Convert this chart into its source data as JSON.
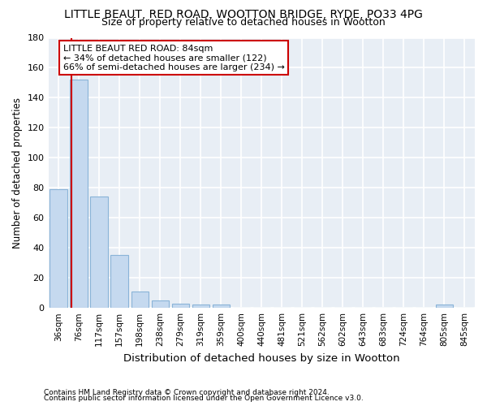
{
  "title": "LITTLE BEAUT, RED ROAD, WOOTTON BRIDGE, RYDE, PO33 4PG",
  "subtitle": "Size of property relative to detached houses in Wootton",
  "xlabel": "Distribution of detached houses by size in Wootton",
  "ylabel": "Number of detached properties",
  "footnote1": "Contains HM Land Registry data © Crown copyright and database right 2024.",
  "footnote2": "Contains public sector information licensed under the Open Government Licence v3.0.",
  "bar_labels": [
    "36sqm",
    "76sqm",
    "117sqm",
    "157sqm",
    "198sqm",
    "238sqm",
    "279sqm",
    "319sqm",
    "359sqm",
    "400sqm",
    "440sqm",
    "481sqm",
    "521sqm",
    "562sqm",
    "602sqm",
    "643sqm",
    "683sqm",
    "724sqm",
    "764sqm",
    "805sqm",
    "845sqm"
  ],
  "bar_values": [
    79,
    152,
    74,
    35,
    11,
    5,
    3,
    2,
    2,
    0,
    0,
    0,
    0,
    0,
    0,
    0,
    0,
    0,
    0,
    2,
    0
  ],
  "bar_color": "#c5d9ef",
  "bar_edge_color": "#8ab4d8",
  "annotation_title": "LITTLE BEAUT RED ROAD: 84sqm",
  "annotation_line1": "← 34% of detached houses are smaller (122)",
  "annotation_line2": "66% of semi-detached houses are larger (234) →",
  "vline_color": "#cc0000",
  "annotation_box_edge": "#cc0000",
  "ylim": [
    0,
    180
  ],
  "yticks": [
    0,
    20,
    40,
    60,
    80,
    100,
    120,
    140,
    160,
    180
  ],
  "bg_color": "#ffffff",
  "plot_bg_color": "#e8eef5",
  "grid_color": "#ffffff",
  "title_fontsize": 10,
  "subtitle_fontsize": 9,
  "vline_x_index": 1
}
